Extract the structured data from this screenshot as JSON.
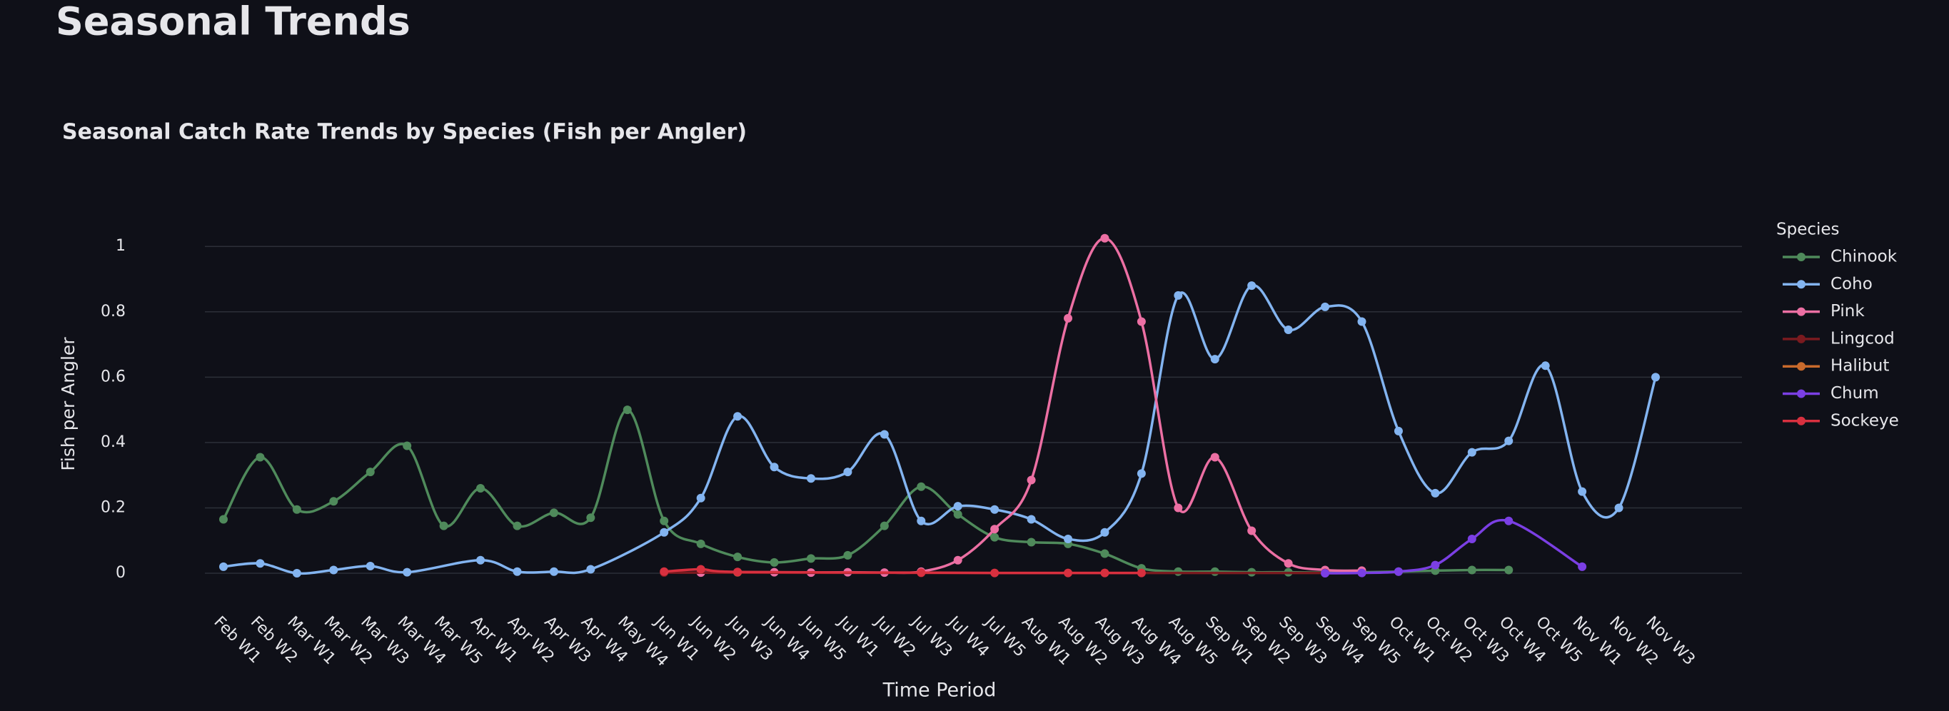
{
  "header": {
    "title": "Seasonal Trends"
  },
  "chart_data": {
    "type": "line",
    "title": "Seasonal Catch Rate Trends by Species (Fish per Angler)",
    "x_label": "Time Period",
    "y_label": "Fish per Angler",
    "categories": [
      "Feb W1",
      "Feb W2",
      "Mar W1",
      "Mar W2",
      "Mar W3",
      "Mar W4",
      "Mar W5",
      "Apr W1",
      "Apr W2",
      "Apr W3",
      "Apr W4",
      "May W4",
      "Jun W1",
      "Jun W2",
      "Jun W3",
      "Jun W4",
      "Jun W5",
      "Jul W1",
      "Jul W2",
      "Jul W3",
      "Jul W4",
      "Jul W5",
      "Aug W1",
      "Aug W2",
      "Aug W3",
      "Aug W4",
      "Aug W5",
      "Sep W1",
      "Sep W2",
      "Sep W3",
      "Sep W4",
      "Sep W5",
      "Oct W1",
      "Oct W2",
      "Oct W3",
      "Oct W4",
      "Oct W5",
      "Nov W1",
      "Nov W2",
      "Nov W3"
    ],
    "ylim": [
      -0.06,
      1.09
    ],
    "yticks": [
      0,
      0.2,
      0.4,
      0.6,
      0.8,
      1
    ],
    "grid": true,
    "legend_title": "Species",
    "legend": "right",
    "smooth": true,
    "series": [
      {
        "name": "Chinook",
        "color": "#4f8a5b",
        "x": [
          "Feb W1",
          "Feb W2",
          "Mar W1",
          "Mar W2",
          "Mar W3",
          "Mar W4",
          "Mar W5",
          "Apr W1",
          "Apr W2",
          "Apr W3",
          "Apr W4",
          "May W4",
          "Jun W1",
          "Jun W2",
          "Jun W3",
          "Jun W4",
          "Jun W5",
          "Jul W1",
          "Jul W2",
          "Jul W3",
          "Jul W4",
          "Jul W5",
          "Aug W1",
          "Aug W2",
          "Aug W3",
          "Aug W4",
          "Aug W5",
          "Sep W1",
          "Sep W2",
          "Sep W3",
          "Sep W4",
          "Sep W5",
          "Oct W1",
          "Oct W2",
          "Oct W3",
          "Oct W4"
        ],
        "values": [
          0.165,
          0.355,
          0.195,
          0.22,
          0.31,
          0.39,
          0.145,
          0.26,
          0.145,
          0.185,
          0.17,
          0.5,
          0.16,
          0.09,
          0.05,
          0.033,
          0.045,
          0.055,
          0.145,
          0.265,
          0.18,
          0.11,
          0.095,
          0.09,
          0.06,
          0.015,
          0.005,
          0.005,
          0.003,
          0.003,
          0.002,
          0.003,
          0.005,
          0.008,
          0.01,
          0.01
        ]
      },
      {
        "name": "Coho",
        "color": "#83b4f0",
        "x": [
          "Feb W1",
          "Feb W2",
          "Mar W1",
          "Mar W2",
          "Mar W3",
          "Mar W4",
          "Apr W1",
          "Apr W2",
          "Apr W3",
          "Apr W4",
          "Jun W1",
          "Jun W2",
          "Jun W3",
          "Jun W4",
          "Jun W5",
          "Jul W1",
          "Jul W2",
          "Jul W3",
          "Jul W4",
          "Jul W5",
          "Aug W1",
          "Aug W2",
          "Aug W3",
          "Aug W4",
          "Aug W5",
          "Sep W1",
          "Sep W2",
          "Sep W3",
          "Sep W4",
          "Sep W5",
          "Oct W1",
          "Oct W2",
          "Oct W3",
          "Oct W4",
          "Oct W5",
          "Nov W1",
          "Nov W2",
          "Nov W3"
        ],
        "values": [
          0.02,
          0.03,
          0.0,
          0.01,
          0.022,
          0.003,
          0.04,
          0.005,
          0.005,
          0.012,
          0.125,
          0.23,
          0.48,
          0.325,
          0.29,
          0.31,
          0.425,
          0.16,
          0.205,
          0.195,
          0.165,
          0.105,
          0.125,
          0.305,
          0.85,
          0.655,
          0.88,
          0.745,
          0.815,
          0.77,
          0.435,
          0.245,
          0.37,
          0.405,
          0.635,
          0.25,
          0.2,
          0.6
        ]
      },
      {
        "name": "Pink",
        "color": "#ec6fa3",
        "x": [
          "Jun W2",
          "Jun W3",
          "Jun W4",
          "Jun W5",
          "Jul W1",
          "Jul W2",
          "Jul W3",
          "Jul W4",
          "Jul W5",
          "Aug W1",
          "Aug W2",
          "Aug W3",
          "Aug W4",
          "Aug W5",
          "Sep W1",
          "Sep W2",
          "Sep W3",
          "Sep W4",
          "Sep W5"
        ],
        "values": [
          0.002,
          0.003,
          0.003,
          0.002,
          0.003,
          0.002,
          0.005,
          0.04,
          0.135,
          0.285,
          0.78,
          1.025,
          0.77,
          0.2,
          0.355,
          0.13,
          0.03,
          0.01,
          0.008
        ]
      },
      {
        "name": "Lingcod",
        "color": "#7a1a1f",
        "x": [
          "Jun W1",
          "Jul W3",
          "Aug W3",
          "Sep W4"
        ],
        "values": [
          0.002,
          0.001,
          0.001,
          0.001
        ]
      },
      {
        "name": "Halibut",
        "color": "#c96a2c",
        "x": [
          "Jun W3"
        ],
        "values": [
          0.003
        ]
      },
      {
        "name": "Chum",
        "color": "#7b3fe4",
        "x": [
          "Sep W4",
          "Sep W5",
          "Oct W1",
          "Oct W2",
          "Oct W3",
          "Oct W4",
          "Nov W1"
        ],
        "values": [
          0.0,
          0.001,
          0.005,
          0.025,
          0.105,
          0.16,
          0.02
        ]
      },
      {
        "name": "Sockeye",
        "color": "#d8303f",
        "x": [
          "Jun W1",
          "Jun W2",
          "Jun W3",
          "Jul W3",
          "Jul W5",
          "Aug W2",
          "Aug W3",
          "Aug W4"
        ],
        "values": [
          0.005,
          0.012,
          0.004,
          0.002,
          0.001,
          0.001,
          0.001,
          0.001
        ]
      }
    ]
  }
}
